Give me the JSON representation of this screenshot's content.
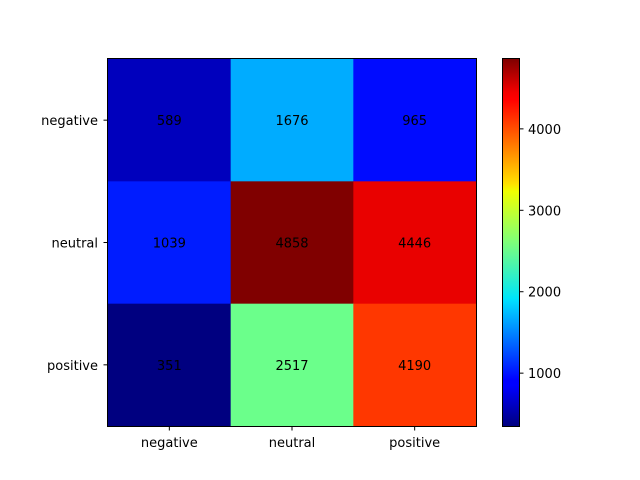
{
  "chart_data": {
    "type": "heatmap",
    "title": "",
    "xlabel": "",
    "ylabel": "",
    "x_categories": [
      "negative",
      "neutral",
      "positive"
    ],
    "y_categories": [
      "negative",
      "neutral",
      "positive"
    ],
    "values": [
      [
        589,
        1676,
        965
      ],
      [
        1039,
        4858,
        4446
      ],
      [
        351,
        2517,
        4190
      ]
    ],
    "colormap": "jet",
    "colorbar": {
      "range": [
        351,
        4858
      ],
      "ticks": [
        1000,
        2000,
        3000,
        4000
      ]
    },
    "grid": false,
    "legend": "none"
  }
}
